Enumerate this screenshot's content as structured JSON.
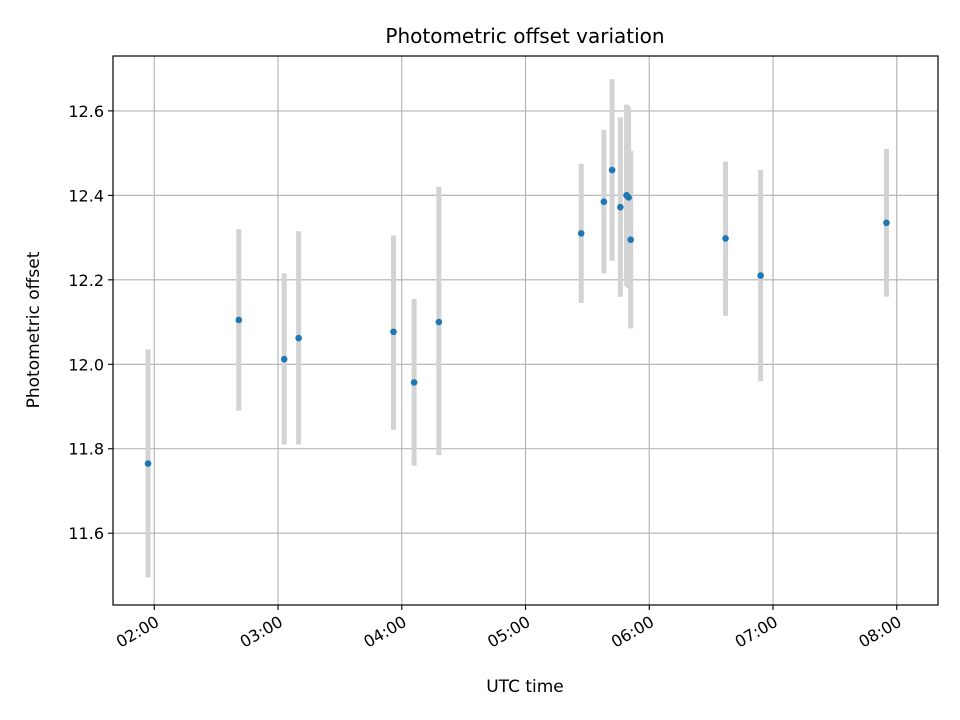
{
  "chart_data": {
    "type": "scatter",
    "title": "Photometric offset variation",
    "xlabel": "UTC time",
    "ylabel": "Photometric offset",
    "x_axis": "time",
    "x_ticks": [
      "02:00",
      "03:00",
      "04:00",
      "05:00",
      "06:00",
      "07:00",
      "08:00"
    ],
    "xlim": [
      "01:40",
      "08:20"
    ],
    "y_ticks": [
      "11.6",
      "11.8",
      "12.0",
      "12.2",
      "12.4",
      "12.6"
    ],
    "ylim": [
      11.43,
      12.73
    ],
    "grid": true,
    "colors": {
      "point": "#1f77b4",
      "errorbar": "#d3d3d3",
      "grid": "#b0b0b0",
      "axis": "#000000"
    },
    "points": [
      {
        "x": "01:57",
        "y": 11.765,
        "yerr_low": 11.495,
        "yerr_high": 12.035
      },
      {
        "x": "02:41",
        "y": 12.105,
        "yerr_low": 11.89,
        "yerr_high": 12.32
      },
      {
        "x": "03:03",
        "y": 12.012,
        "yerr_low": 11.81,
        "yerr_high": 12.215
      },
      {
        "x": "03:10",
        "y": 12.062,
        "yerr_low": 11.81,
        "yerr_high": 12.315
      },
      {
        "x": "03:56",
        "y": 12.077,
        "yerr_low": 11.845,
        "yerr_high": 12.305
      },
      {
        "x": "04:06",
        "y": 11.957,
        "yerr_low": 11.76,
        "yerr_high": 12.155
      },
      {
        "x": "04:18",
        "y": 12.1,
        "yerr_low": 11.785,
        "yerr_high": 12.42
      },
      {
        "x": "05:27",
        "y": 12.31,
        "yerr_low": 12.145,
        "yerr_high": 12.475
      },
      {
        "x": "05:38",
        "y": 12.385,
        "yerr_low": 12.215,
        "yerr_high": 12.555
      },
      {
        "x": "05:42",
        "y": 12.46,
        "yerr_low": 12.245,
        "yerr_high": 12.675
      },
      {
        "x": "05:46",
        "y": 12.372,
        "yerr_low": 12.16,
        "yerr_high": 12.585
      },
      {
        "x": "05:49",
        "y": 12.4,
        "yerr_low": 12.185,
        "yerr_high": 12.615
      },
      {
        "x": "05:50",
        "y": 12.395,
        "yerr_low": 12.18,
        "yerr_high": 12.61
      },
      {
        "x": "05:51",
        "y": 12.295,
        "yerr_low": 12.085,
        "yerr_high": 12.505
      },
      {
        "x": "06:37",
        "y": 12.298,
        "yerr_low": 12.115,
        "yerr_high": 12.48
      },
      {
        "x": "06:54",
        "y": 12.21,
        "yerr_low": 11.96,
        "yerr_high": 12.46
      },
      {
        "x": "07:55",
        "y": 12.335,
        "yerr_low": 12.16,
        "yerr_high": 12.51
      }
    ]
  }
}
